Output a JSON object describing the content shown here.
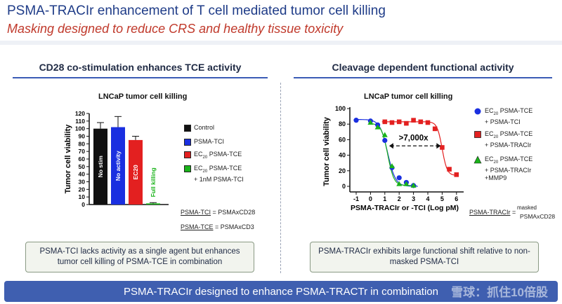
{
  "header": {
    "title": "PSMA-TRACIr enhancement of T cell mediated tumor cell killing",
    "subtitle": "Masking designed to reduce CRS and healthy tissue toxicity"
  },
  "left_panel": {
    "heading": "CD28 co-stimulation enhances TCE activity",
    "legend": [
      {
        "label": "Control",
        "color": "#111111"
      },
      {
        "label": "PSMA-TCI",
        "color": "#1a2fe0"
      },
      {
        "label_html_prefix": "EC",
        "label_sub": "20",
        "label_rest": " PSMA-TCE",
        "color": "#e32020"
      },
      {
        "label_html_prefix": "EC",
        "label_sub": "20",
        "label_rest": " PSMA-TCE",
        "label_line2": "+ 1nM PSMA-TCI",
        "color": "#19b319"
      }
    ],
    "definitions": [
      {
        "term": "PSMA-TCI",
        "def": " = PSMAxCD28"
      },
      {
        "term": "PSMA-TCE",
        "def": " = PSMAxCD3"
      }
    ],
    "callout": "PSMA-TCI lacks activity as a single agent but enhances tumor cell killing of PSMA-TCE in combination"
  },
  "right_panel": {
    "heading": "Cleavage dependent functional activity",
    "legend": [
      {
        "prefix": "EC",
        "sub": "20",
        "line1": " PSMA-TCE",
        "line2": "+ PSMA-TCI",
        "color": "#1a2fe0",
        "marker": "circle"
      },
      {
        "prefix": "EC",
        "sub": "20",
        "line1": " PSMA-TCE",
        "line2": "+ PSMA-TRACIr",
        "color": "#e32020",
        "marker": "square"
      },
      {
        "prefix": "EC",
        "sub": "20",
        "line1": " PSMA-TCE",
        "line2": "+ PSMA-TRACIr",
        "line3": "+MMP9",
        "color": "#19b319",
        "marker": "triangle"
      }
    ],
    "definition_term": "PSMA-TRACIr",
    "definition_eq": " = ",
    "definition_top": "masked",
    "definition_bottom": "PSMAxCD28",
    "callout": "PSMA-TRACIr exhibits large functional shift relative to non-masked PSMA-TCI"
  },
  "footer": {
    "text": "PSMA-TRACIr designed to enhance PSMA-TRACTr in combination",
    "watermark": "雪球：抓住10倍股"
  },
  "chart_data": [
    {
      "type": "bar",
      "title": "LNCaP tumor cell killing",
      "ylabel": "Tumor cell viability",
      "xlabel": "",
      "ylim": [
        0,
        120
      ],
      "yticks": [
        0,
        10,
        20,
        30,
        40,
        50,
        60,
        70,
        80,
        90,
        100,
        110,
        120
      ],
      "categories": [
        "Control",
        "PSMA-TCI",
        "EC20 PSMA-TCE",
        "EC20 PSMA-TCE + 1nM PSMA-TCI"
      ],
      "values": [
        100,
        102,
        85,
        1.5
      ],
      "errors": [
        8,
        14,
        5,
        1
      ],
      "colors": [
        "#111111",
        "#1a2fe0",
        "#e32020",
        "#19b319"
      ],
      "bar_labels": [
        "No stim",
        "No activity",
        "EC20",
        "Full killing"
      ]
    },
    {
      "type": "scatter",
      "title": "LNCaP tumor cell killing",
      "xlabel": "PSMA-TRACIr or -TCI (Log pM)",
      "ylabel": "Tumor cell viability",
      "xlim": [
        -1.2,
        6.3
      ],
      "ylim": [
        -5,
        100
      ],
      "xticks": [
        -1,
        0,
        1,
        2,
        3,
        4,
        5,
        6
      ],
      "yticks": [
        0,
        20,
        40,
        60,
        80,
        100
      ],
      "annotation": ">7,000x",
      "series": [
        {
          "name": "EC20 PSMA-TCE + PSMA-TCI",
          "color": "#1a2fe0",
          "marker": "circle",
          "x": [
            -1,
            0,
            0.5,
            1,
            1.5,
            2,
            2.5,
            3
          ],
          "y": [
            85,
            84,
            79,
            59,
            24,
            11,
            5,
            1
          ]
        },
        {
          "name": "EC20 PSMA-TCE + PSMA-TRACIr",
          "color": "#e32020",
          "marker": "square",
          "x": [
            1,
            1.5,
            2,
            2.5,
            3,
            3.5,
            4,
            4.5,
            5,
            5.5,
            6
          ],
          "y": [
            83,
            82,
            83,
            81,
            85,
            83,
            82,
            74,
            50,
            22,
            15
          ]
        },
        {
          "name": "EC20 PSMA-TCE + PSMA-TRACIr + MMP9",
          "color": "#19b319",
          "marker": "triangle",
          "x": [
            0,
            0.5,
            1,
            1.5,
            2,
            2.5,
            3
          ],
          "y": [
            82,
            76,
            66,
            26,
            3,
            3,
            1
          ]
        }
      ]
    }
  ]
}
